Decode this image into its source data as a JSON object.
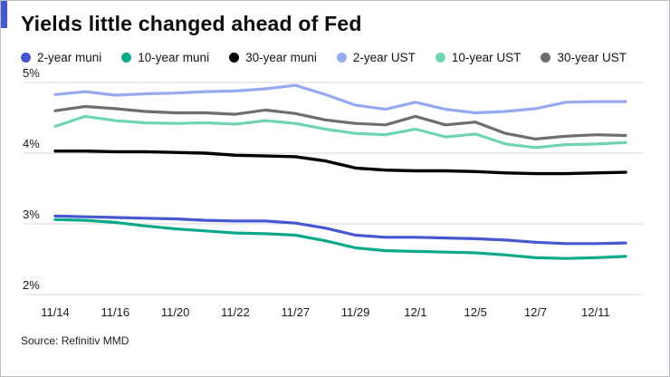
{
  "header": {
    "title": "Yields little changed ahead of Fed",
    "accent_color": "#4558d2"
  },
  "legend": [
    {
      "label": "2-year muni",
      "color": "#4558d2"
    },
    {
      "label": "10-year muni",
      "color": "#0ba88a"
    },
    {
      "label": "30-year muni",
      "color": "#000000"
    },
    {
      "label": "2-year UST",
      "color": "#97a9f0"
    },
    {
      "label": "10-year UST",
      "color": "#6fd3b6"
    },
    {
      "label": "30-year UST",
      "color": "#6e6e6e"
    }
  ],
  "source": "Source: Refinitiv MMD",
  "chart_data": {
    "type": "line",
    "title": "Yields little changed ahead of Fed",
    "xlabel": "",
    "ylabel": "",
    "ylim": [
      2,
      5
    ],
    "yticks": [
      2,
      3,
      4,
      5
    ],
    "ytick_labels": [
      "2%",
      "3%",
      "4%",
      "5%"
    ],
    "grid": true,
    "legend_position": "top",
    "x": [
      "11/14",
      "11/15",
      "11/16",
      "11/17",
      "11/20",
      "11/21",
      "11/22",
      "11/24",
      "11/27",
      "11/28",
      "11/29",
      "11/30",
      "12/1",
      "12/4",
      "12/5",
      "12/6",
      "12/7",
      "12/8",
      "12/11",
      "12/12"
    ],
    "x_tick_indices": [
      0,
      2,
      4,
      6,
      8,
      10,
      12,
      14,
      16,
      18
    ],
    "x_tick_labels": [
      "11/14",
      "11/16",
      "11/20",
      "11/22",
      "11/27",
      "11/29",
      "12/1",
      "12/5",
      "12/7",
      "12/11"
    ],
    "series": [
      {
        "name": "2-year UST",
        "color": "#97a9f0",
        "width": 3.2,
        "values": [
          4.83,
          4.87,
          4.82,
          4.84,
          4.85,
          4.87,
          4.88,
          4.91,
          4.96,
          4.83,
          4.68,
          4.62,
          4.72,
          4.62,
          4.57,
          4.59,
          4.63,
          4.72,
          4.73,
          4.73
        ]
      },
      {
        "name": "10-year UST",
        "color": "#6fd3b6",
        "width": 3.2,
        "values": [
          4.38,
          4.52,
          4.46,
          4.43,
          4.42,
          4.43,
          4.41,
          4.46,
          4.42,
          4.34,
          4.28,
          4.26,
          4.34,
          4.23,
          4.27,
          4.13,
          4.08,
          4.12,
          4.13,
          4.15
        ]
      },
      {
        "name": "30-year UST",
        "color": "#6e6e6e",
        "width": 3.2,
        "values": [
          4.6,
          4.66,
          4.63,
          4.59,
          4.57,
          4.57,
          4.55,
          4.61,
          4.56,
          4.47,
          4.42,
          4.4,
          4.52,
          4.4,
          4.44,
          4.28,
          4.2,
          4.24,
          4.26,
          4.25
        ]
      },
      {
        "name": "30-year muni",
        "color": "#000000",
        "width": 3.4,
        "values": [
          4.03,
          4.03,
          4.02,
          4.02,
          4.01,
          4.0,
          3.97,
          3.96,
          3.95,
          3.89,
          3.79,
          3.76,
          3.75,
          3.75,
          3.74,
          3.72,
          3.71,
          3.71,
          3.72,
          3.73
        ]
      },
      {
        "name": "2-year muni",
        "color": "#4558d2",
        "width": 3.2,
        "values": [
          3.11,
          3.1,
          3.09,
          3.08,
          3.07,
          3.05,
          3.04,
          3.04,
          3.01,
          2.94,
          2.84,
          2.81,
          2.81,
          2.8,
          2.79,
          2.77,
          2.74,
          2.72,
          2.72,
          2.73
        ]
      },
      {
        "name": "10-year muni",
        "color": "#0ba88a",
        "width": 3.2,
        "values": [
          3.06,
          3.05,
          3.02,
          2.97,
          2.93,
          2.9,
          2.87,
          2.86,
          2.84,
          2.76,
          2.66,
          2.62,
          2.61,
          2.6,
          2.59,
          2.56,
          2.52,
          2.51,
          2.52,
          2.54
        ]
      }
    ]
  }
}
